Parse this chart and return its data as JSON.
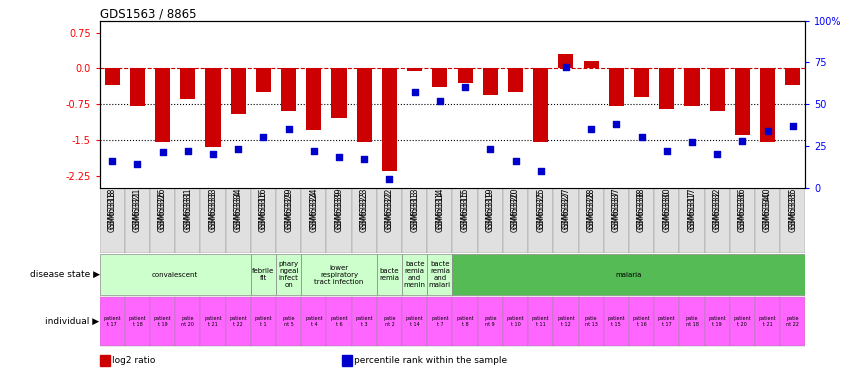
{
  "title": "GDS1563 / 8865",
  "samples": [
    "GSM63318",
    "GSM63321",
    "GSM63326",
    "GSM63331",
    "GSM63333",
    "GSM63334",
    "GSM63316",
    "GSM63329",
    "GSM63324",
    "GSM63339",
    "GSM63323",
    "GSM63322",
    "GSM63313",
    "GSM63314",
    "GSM63315",
    "GSM63319",
    "GSM63320",
    "GSM63325",
    "GSM63327",
    "GSM63328",
    "GSM63337",
    "GSM63338",
    "GSM63330",
    "GSM63317",
    "GSM63332",
    "GSM63336",
    "GSM63340",
    "GSM63335"
  ],
  "log2_ratio": [
    -0.35,
    -0.8,
    -1.55,
    -0.65,
    -1.65,
    -0.95,
    -0.5,
    -0.9,
    -1.3,
    -1.05,
    -1.55,
    -2.15,
    -0.05,
    -0.4,
    -0.3,
    -0.55,
    -0.5,
    -1.55,
    0.3,
    0.15,
    -0.8,
    -0.6,
    -0.85,
    -0.8,
    -0.9,
    -1.4,
    -1.55,
    -0.35
  ],
  "percentile_rank": [
    16,
    14,
    21,
    22,
    20,
    23,
    30,
    35,
    22,
    18,
    17,
    5,
    57,
    52,
    60,
    23,
    16,
    10,
    72,
    35,
    38,
    30,
    22,
    27,
    20,
    28,
    34,
    37
  ],
  "disease_state_groups": [
    {
      "label": "convalescent",
      "start": 0,
      "end": 5,
      "color": "#ccffcc"
    },
    {
      "label": "febrile\nfit",
      "start": 6,
      "end": 6,
      "color": "#ccffcc"
    },
    {
      "label": "phary\nngeal\ninfect\non",
      "start": 7,
      "end": 7,
      "color": "#ccffcc"
    },
    {
      "label": "lower\nrespiratory\ntract infection",
      "start": 8,
      "end": 10,
      "color": "#ccffcc"
    },
    {
      "label": "bacte\nremia",
      "start": 11,
      "end": 11,
      "color": "#ccffcc"
    },
    {
      "label": "bacte\nremia\nand\nmenin",
      "start": 12,
      "end": 12,
      "color": "#ccffcc"
    },
    {
      "label": "bacte\nremia\nand\nmalari",
      "start": 13,
      "end": 13,
      "color": "#ccffcc"
    },
    {
      "label": "malaria",
      "start": 14,
      "end": 27,
      "color": "#55bb55"
    }
  ],
  "individual_color": "#ff66ff",
  "bar_color": "#cc0000",
  "dot_color": "#0000cc",
  "ylim_left": [
    -2.5,
    1.0
  ],
  "ylim_right": [
    0,
    100
  ],
  "yticks_left": [
    0.75,
    0.0,
    -0.75,
    -1.5,
    -2.25
  ],
  "yticks_right": [
    100,
    75,
    50,
    25,
    0
  ],
  "hlines": [
    0.0,
    -0.75,
    -1.5
  ],
  "hline_styles": [
    "dashed",
    "dotted",
    "dotted"
  ],
  "hline_colors": [
    "#cc0000",
    "#000000",
    "#000000"
  ],
  "legend_items": [
    {
      "label": "log2 ratio",
      "color": "#cc0000"
    },
    {
      "label": "percentile rank within the sample",
      "color": "#0000cc"
    }
  ],
  "bg_color": "#ffffff",
  "individual_labels": [
    "patient\nt 17",
    "patient\nt 18",
    "patient\nt 19",
    "patie\nnt 20",
    "patient\nt 21",
    "patient\nt 22",
    "patient\nt 1",
    "patie\nnt 5",
    "patient\nt 4",
    "patient\nt 6",
    "patient\nt 3",
    "patie\nnt 2",
    "patient\nt 14",
    "patient\nt 7",
    "patient\nt 8",
    "patie\nnt 9",
    "patient\nt 10",
    "patient\nt 11",
    "patient\nt 12",
    "patie\nnt 13",
    "patient\nt 15",
    "patient\nt 16",
    "patient\nt 17",
    "patie\nnt 18",
    "patient\nt 19",
    "patient\nt 20",
    "patient\nt 21",
    "patie\nnt 22"
  ]
}
